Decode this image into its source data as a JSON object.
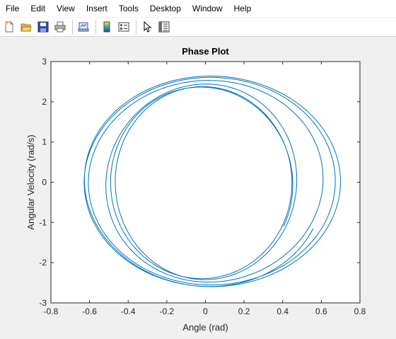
{
  "menu": {
    "items": [
      {
        "label": "File"
      },
      {
        "label": "Edit"
      },
      {
        "label": "View"
      },
      {
        "label": "Insert"
      },
      {
        "label": "Tools"
      },
      {
        "label": "Desktop"
      },
      {
        "label": "Window"
      },
      {
        "label": "Help"
      }
    ]
  },
  "toolbar": {
    "icons": [
      "new-file-icon",
      "open-folder-icon",
      "save-icon",
      "print-icon",
      "link-plot-icon",
      "colorbar-icon",
      "legend-icon",
      "edit-plot-icon",
      "property-inspector-icon"
    ]
  },
  "colors": {
    "line": "#0072bd",
    "axes_bg": "#ffffff",
    "figure_bg": "#f0f0f0"
  },
  "chart_data": {
    "type": "line",
    "title": "Phase Plot",
    "xlabel": "Angle (rad)",
    "ylabel": "Angular Velocity (rad/s)",
    "xlim": [
      -0.8,
      0.8
    ],
    "ylim": [
      -3,
      3
    ],
    "xticks": [
      "-0.8",
      "-0.6",
      "-0.4",
      "-0.2",
      "0",
      "0.2",
      "0.4",
      "0.6",
      "0.8"
    ],
    "yticks": [
      "3",
      "2",
      "1",
      "0",
      "-1",
      "-2",
      "-3"
    ],
    "grid": false,
    "series": [
      {
        "trajectory": "spiral-like closed orbits about the origin",
        "start": [
          0.52,
          -1.0
        ],
        "end": [
          0.5,
          0.45
        ],
        "loops": 6,
        "x_extent": [
          -0.68,
          0.68
        ],
        "y_extent": [
          -2.65,
          2.62
        ]
      }
    ]
  }
}
